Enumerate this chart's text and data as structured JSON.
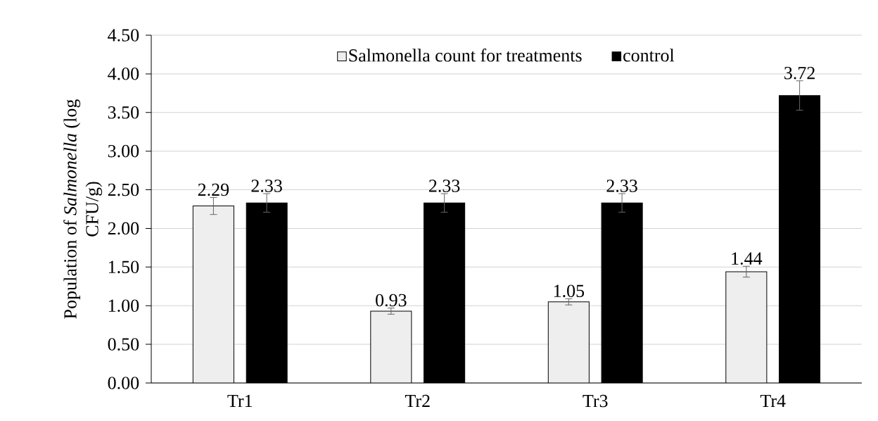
{
  "chart_data": {
    "type": "bar",
    "ylabel": "Population of *Salmonella* (log CFU/g)",
    "categories": [
      "Tr1",
      "Tr2",
      "Tr3",
      "Tr4"
    ],
    "series": [
      {
        "name": "Salmonella count for treatments",
        "color": "#eeeeee",
        "values": [
          2.29,
          0.93,
          1.05,
          1.44
        ],
        "errors": [
          0.11,
          0.04,
          0.04,
          0.07
        ]
      },
      {
        "name": "control",
        "color": "#000000",
        "values": [
          2.33,
          2.33,
          2.33,
          3.72
        ],
        "errors": [
          0.12,
          0.12,
          0.12,
          0.19
        ]
      }
    ],
    "ylim": [
      0,
      4.5
    ],
    "yticks": [
      {
        "value": 0,
        "label": "0.00"
      },
      {
        "value": 0.5,
        "label": "0.50"
      },
      {
        "value": 1,
        "label": "1.00"
      },
      {
        "value": 1.5,
        "label": "1.50"
      },
      {
        "value": 2,
        "label": "2.00"
      },
      {
        "value": 2.5,
        "label": "2.50"
      },
      {
        "value": 3,
        "label": "3.00"
      },
      {
        "value": 3.5,
        "label": "3.50"
      },
      {
        "value": 4,
        "label": "4.00"
      },
      {
        "value": 4.5,
        "label": "4.50"
      }
    ],
    "grid": "y",
    "legend": "top",
    "data_labels": true
  }
}
